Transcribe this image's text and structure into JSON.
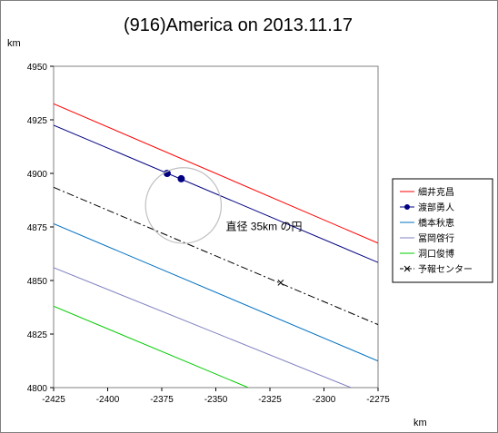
{
  "chart_data": {
    "type": "line",
    "title": "(916)America on 2013.11.17",
    "xlabel": "km",
    "ylabel": "km",
    "xlim": [
      -2425,
      -2275
    ],
    "ylim": [
      4800,
      4950
    ],
    "x_ticks": [
      -2425,
      -2400,
      -2375,
      -2350,
      -2325,
      -2300,
      -2275
    ],
    "y_ticks": [
      4800,
      4825,
      4850,
      4875,
      4900,
      4925,
      4950
    ],
    "x_tick_labels": [
      "-2425",
      "-2400",
      "-2375",
      "-2350",
      "-2325",
      "-2300",
      "-2275"
    ],
    "y_tick_labels": [
      "4800",
      "4825",
      "4850",
      "4875",
      "4900",
      "4925",
      "4950"
    ],
    "grid": false,
    "legend_position": "right",
    "series": [
      {
        "name": "細井克昌",
        "color": "#ff0000",
        "style": "solid",
        "points": [
          [
            -2425,
            4932.5
          ],
          [
            -2274,
            4867
          ]
        ]
      },
      {
        "name": "渡部勇人",
        "color": "#000080",
        "style": "solid",
        "marker": "circle",
        "points": [
          [
            -2425,
            4922.5
          ],
          [
            -2274,
            4858
          ]
        ],
        "marker_points": [
          [
            -2372.5,
            4900
          ],
          [
            -2366,
            4897.5
          ]
        ]
      },
      {
        "name": "橋本秋恵",
        "color": "#0070c0",
        "style": "solid",
        "points": [
          [
            -2425,
            4876.5
          ],
          [
            -2274,
            4812
          ]
        ]
      },
      {
        "name": "冨岡啓行",
        "color": "#8080c0",
        "style": "solid",
        "points": [
          [
            -2425,
            4856
          ],
          [
            -2287.5,
            4800
          ]
        ]
      },
      {
        "name": "洞口俊博",
        "color": "#00cc00",
        "style": "solid",
        "points": [
          [
            -2425,
            4838
          ],
          [
            -2335,
            4800
          ]
        ]
      },
      {
        "name": "予報センター",
        "color": "#000000",
        "style": "dashdot",
        "marker": "x",
        "points": [
          [
            -2425,
            4893.5
          ],
          [
            -2274,
            4829
          ]
        ],
        "marker_points": [
          [
            -2320,
            4849
          ]
        ]
      }
    ],
    "annotations": [
      {
        "type": "circle",
        "label": "直径 35km の円",
        "center": [
          -2365,
          4885
        ],
        "radius_km": 17.5,
        "color": "#c0c0c0"
      }
    ]
  }
}
